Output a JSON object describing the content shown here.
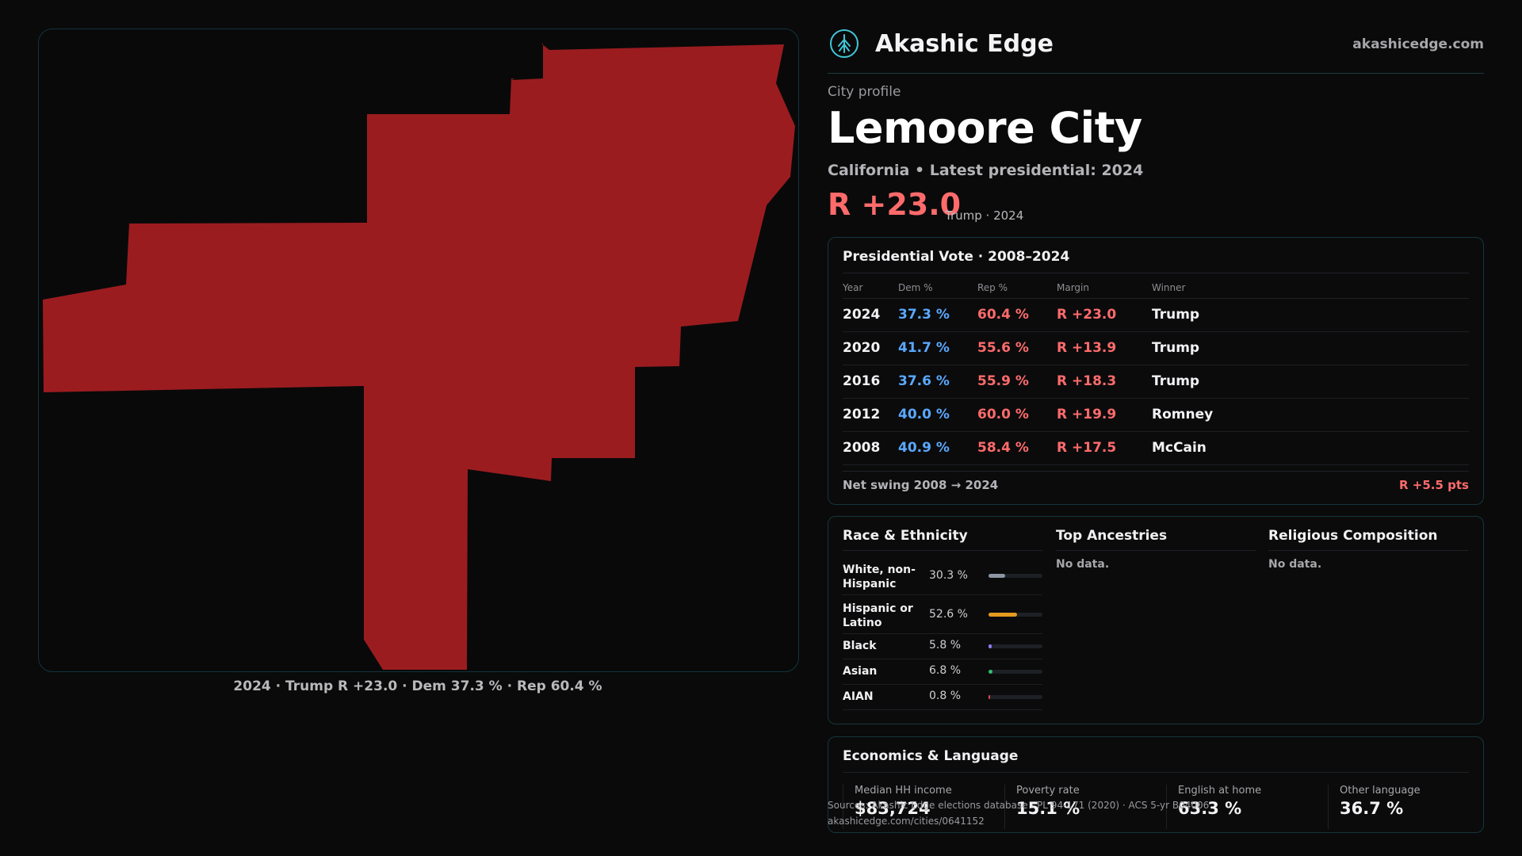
{
  "map": {
    "fill_color": "#9b1c1f",
    "caption": "2024 · Trump R +23.0 · Dem 37.3 % · Rep 60.4 %"
  },
  "brand": {
    "name": "Akashic Edge",
    "url": "akashicedge.com",
    "logo_icon": "tree-emblem-icon"
  },
  "profile": {
    "kicker": "City profile",
    "city": "Lemoore City",
    "subtitle": "California • Latest presidential: 2024",
    "headline_margin": "R +23.0",
    "headline_note": "Trump · 2024"
  },
  "vote": {
    "title": "Presidential Vote · 2008–2024",
    "headers": {
      "year": "Year",
      "dem": "Dem %",
      "rep": "Rep %",
      "margin": "Margin",
      "winner": "Winner"
    },
    "rows": [
      {
        "year": "2024",
        "dem": "37.3 %",
        "rep": "60.4 %",
        "margin": "R +23.0",
        "winner": "Trump"
      },
      {
        "year": "2020",
        "dem": "41.7 %",
        "rep": "55.6 %",
        "margin": "R +13.9",
        "winner": "Trump"
      },
      {
        "year": "2016",
        "dem": "37.6 %",
        "rep": "55.9 %",
        "margin": "R +18.3",
        "winner": "Trump"
      },
      {
        "year": "2012",
        "dem": "40.0 %",
        "rep": "60.0 %",
        "margin": "R +19.9",
        "winner": "Romney"
      },
      {
        "year": "2008",
        "dem": "40.9 %",
        "rep": "58.4 %",
        "margin": "R +17.5",
        "winner": "McCain"
      }
    ],
    "swing_label": "Net swing 2008 → 2024",
    "swing_value": "R +5.5 pts",
    "colors": {
      "dem": "#5aa8ff",
      "rep": "#ff6b6b"
    }
  },
  "race": {
    "title": "Race & Ethnicity",
    "rows": [
      {
        "name": "White, non-Hispanic",
        "pct": "30.3 %",
        "share": 30.3,
        "color": "#8c96a3"
      },
      {
        "name": "Hispanic or Latino",
        "pct": "52.6 %",
        "share": 52.6,
        "color": "#e39a1e"
      },
      {
        "name": "Black",
        "pct": "5.8 %",
        "share": 5.8,
        "color": "#8b7cf0"
      },
      {
        "name": "Asian",
        "pct": "6.8 %",
        "share": 6.8,
        "color": "#2fbf71"
      },
      {
        "name": "AIAN",
        "pct": "0.8 %",
        "share": 0.8,
        "color": "#d94a4a"
      }
    ]
  },
  "ancestries": {
    "title": "Top Ancestries",
    "empty": "No data."
  },
  "religion": {
    "title": "Religious Composition",
    "empty": "No data."
  },
  "econ": {
    "title": "Economics & Language",
    "stats": [
      {
        "label": "Median HH income",
        "value": "$83,724"
      },
      {
        "label": "Poverty rate",
        "value": "15.1 %"
      },
      {
        "label": "English at home",
        "value": "63.3 %"
      },
      {
        "label": "Other language",
        "value": "36.7 %"
      }
    ]
  },
  "footer": {
    "sources": "Sources: Akashic Edge elections database · PL 94-171 (2020) · ACS 5-yr B04006",
    "link": "akashicedge.com/cities/0641152"
  }
}
